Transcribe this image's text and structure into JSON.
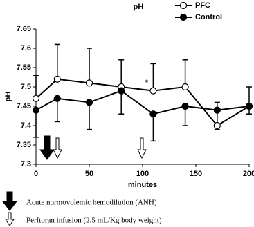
{
  "chart_data": {
    "type": "line",
    "title": "pH",
    "x_label": "minutes",
    "y_label": "pH",
    "x": [
      0,
      20,
      50,
      80,
      110,
      140,
      170,
      200
    ],
    "series": [
      {
        "name": "PFC",
        "color": "#ffffff",
        "values": [
          7.47,
          7.52,
          7.51,
          7.5,
          7.49,
          7.5,
          7.4,
          7.45
        ],
        "errors": [
          0.06,
          0.09,
          0.09,
          0.07,
          0.07,
          0.07,
          0.06,
          0.05
        ],
        "error_side": "upper"
      },
      {
        "name": "Control",
        "color": "#000000",
        "values": [
          7.44,
          7.47,
          7.46,
          7.49,
          7.43,
          7.45,
          7.44,
          7.45
        ],
        "errors": [
          0.07,
          0.06,
          0.07,
          0.06,
          0.07,
          0.05,
          0.05,
          0.02
        ],
        "error_side": "lower"
      }
    ],
    "xlim": [
      0,
      200
    ],
    "xticks": [
      0,
      50,
      100,
      150,
      200
    ],
    "ylim": [
      7.3,
      7.65
    ],
    "yticks": [
      7.3,
      7.35,
      7.4,
      7.45,
      7.5,
      7.55,
      7.6,
      7.65
    ],
    "annotations": [
      "*"
    ],
    "arrow_legend": [
      "Acute normovolemic hemodilution (ANH)",
      "Perftoran infusion (2.5 mL/Kg body weight)"
    ]
  }
}
